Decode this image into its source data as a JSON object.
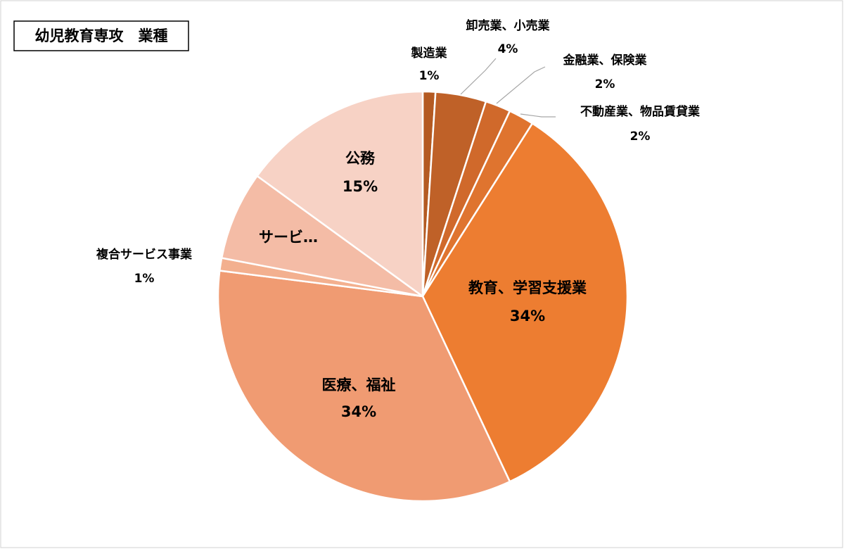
{
  "chart_data": {
    "type": "pie",
    "title": "幼児教育専攻　業種",
    "categories": [
      "製造業",
      "卸売業、小売業",
      "金融業、保険業",
      "不動産業、物品賃貸業",
      "教育、学習支援業",
      "医療、福祉",
      "複合サービス事業",
      "サービ…",
      "公務"
    ],
    "values": [
      1,
      4,
      2,
      2,
      34,
      34,
      1,
      7,
      15
    ],
    "value_labels": [
      "1%",
      "4%",
      "2%",
      "2%",
      "34%",
      "34%",
      "1%",
      null,
      "15%"
    ],
    "colors": [
      "#b45a22",
      "#bf6128",
      "#d0692b",
      "#df742f",
      "#ed7d31",
      "#f09b72",
      "#f3b08f",
      "#f4bca6",
      "#f7d2c5"
    ]
  }
}
